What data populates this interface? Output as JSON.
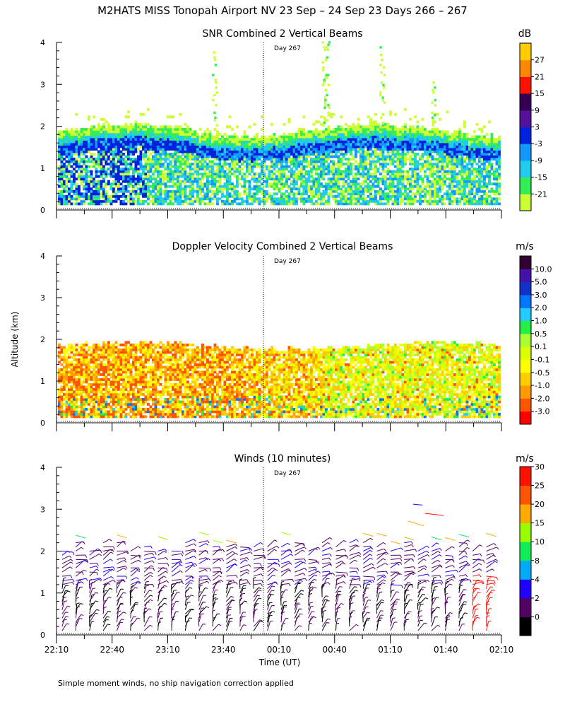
{
  "figure": {
    "title": "M2HATS MISS Tonopah Airport NV  23 Sep – 24 Sep 23 Days 266 – 267",
    "footnote": "Simple moment winds, no ship navigation correction applied",
    "ylabel": "Altitude (km)",
    "xlabel": "Time (UT)",
    "day_marker": "Day 267"
  },
  "chart_data": [
    {
      "type": "heatmap",
      "title": "SNR Combined 2 Vertical Beams",
      "units": "dB",
      "ylim": [
        0,
        4
      ],
      "yticks": [
        "0",
        "1",
        "2",
        "3",
        "4"
      ],
      "colorbar": {
        "labels": [
          "-21",
          "-15",
          "-9",
          "-3",
          "3",
          "9",
          "15",
          "21",
          "27"
        ],
        "colors": [
          "#ccff33",
          "#33ee55",
          "#22ccee",
          "#1199ff",
          "#0022dd",
          "#551199",
          "#330055",
          "#ff1100",
          "#ff8800",
          "#ffcc00"
        ]
      }
    },
    {
      "type": "heatmap",
      "title": "Doppler Velocity Combined 2 Vertical Beams",
      "units": "m/s",
      "ylim": [
        0,
        4
      ],
      "yticks": [
        "0",
        "1",
        "2",
        "3",
        "4"
      ],
      "colorbar": {
        "labels": [
          "-3.0",
          "-2.0",
          "-1.0",
          "-0.5",
          "-0.1",
          "0.1",
          "0.5",
          "1.0",
          "2.0",
          "3.0",
          "5.0",
          "10.0"
        ],
        "colors": [
          "#ff0000",
          "#ff5500",
          "#ff9900",
          "#ffcc00",
          "#ffff00",
          "#ddff00",
          "#aaff33",
          "#22ee44",
          "#22ccff",
          "#0077ff",
          "#1133cc",
          "#4411aa",
          "#330033"
        ]
      }
    },
    {
      "type": "scatter",
      "title": "Winds (10 minutes)",
      "units": "m/s",
      "ylim": [
        0,
        4
      ],
      "yticks": [
        "0",
        "1",
        "2",
        "3",
        "4"
      ],
      "colorbar": {
        "labels": [
          "0",
          "2",
          "4",
          "8",
          "10",
          "15",
          "20",
          "25",
          "30"
        ],
        "colors": [
          "#000000",
          "#550066",
          "#2200ff",
          "#00aaff",
          "#11ee55",
          "#99ff00",
          "#ffaa00",
          "#ff5500",
          "#ff1100"
        ]
      }
    }
  ],
  "time_axis": {
    "ticks": [
      "22:10",
      "22:40",
      "23:10",
      "23:40",
      "00:10",
      "00:40",
      "01:10",
      "01:40",
      "02:10"
    ],
    "minor_per_major": 2
  }
}
